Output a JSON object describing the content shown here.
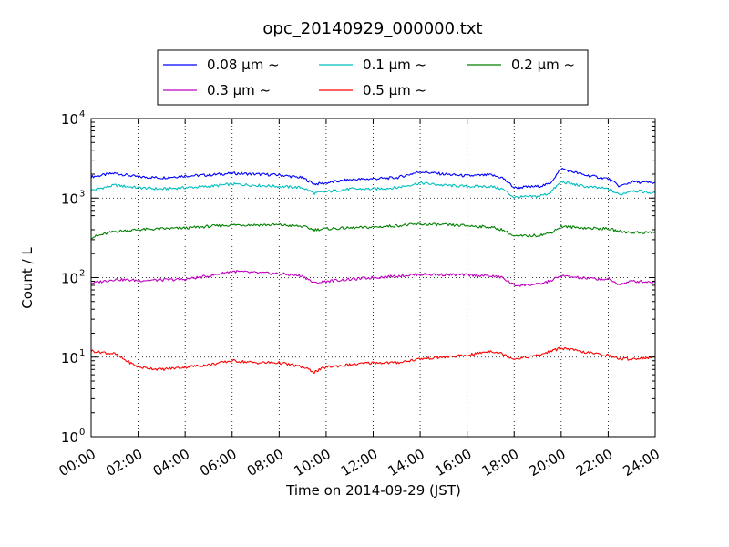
{
  "chart_data": {
    "type": "line",
    "title": "opc_20140929_000000.txt",
    "xlabel": "Time on 2014-09-29 (JST)",
    "ylabel": "Count / L",
    "y_scale": "log",
    "ylim": [
      1,
      10000
    ],
    "y_ticks": [
      {
        "base": "10",
        "exp": "0",
        "value": 1
      },
      {
        "base": "10",
        "exp": "1",
        "value": 10
      },
      {
        "base": "10",
        "exp": "2",
        "value": 100
      },
      {
        "base": "10",
        "exp": "3",
        "value": 1000
      },
      {
        "base": "10",
        "exp": "4",
        "value": 10000
      }
    ],
    "x_range": [
      "00:00",
      "24:00"
    ],
    "x_ticks": [
      "00:00",
      "02:00",
      "04:00",
      "06:00",
      "08:00",
      "10:00",
      "12:00",
      "14:00",
      "16:00",
      "18:00",
      "20:00",
      "22:00",
      "24:00"
    ],
    "grid": true,
    "legend_position": "top-center",
    "series": [
      {
        "name": "0.08 μm ~",
        "color": "#0000ff",
        "x": [
          "00:00",
          "01:00",
          "02:00",
          "03:00",
          "04:00",
          "05:00",
          "06:00",
          "07:00",
          "08:00",
          "09:00",
          "09:30",
          "10:00",
          "11:00",
          "12:00",
          "13:00",
          "14:00",
          "15:00",
          "16:00",
          "17:00",
          "17:30",
          "18:00",
          "19:00",
          "19:30",
          "20:00",
          "21:00",
          "22:00",
          "22:30",
          "23:00",
          "24:00"
        ],
        "y": [
          1850,
          2050,
          1850,
          1800,
          1900,
          1950,
          2050,
          2000,
          1950,
          1800,
          1500,
          1550,
          1700,
          1750,
          1800,
          2150,
          2000,
          1900,
          1950,
          1800,
          1350,
          1400,
          1500,
          2350,
          1950,
          1750,
          1400,
          1600,
          1550
        ]
      },
      {
        "name": "0.1 μm ~",
        "color": "#00bfbf",
        "x": [
          "00:00",
          "01:00",
          "02:00",
          "03:00",
          "04:00",
          "05:00",
          "06:00",
          "07:00",
          "08:00",
          "09:00",
          "09:30",
          "10:00",
          "11:00",
          "12:00",
          "13:00",
          "14:00",
          "15:00",
          "16:00",
          "17:00",
          "17:30",
          "18:00",
          "19:00",
          "19:30",
          "20:00",
          "21:00",
          "22:00",
          "22:30",
          "23:00",
          "24:00"
        ],
        "y": [
          1250,
          1450,
          1350,
          1300,
          1350,
          1400,
          1500,
          1450,
          1400,
          1350,
          1150,
          1200,
          1300,
          1300,
          1350,
          1550,
          1450,
          1400,
          1400,
          1300,
          1020,
          1050,
          1150,
          1600,
          1400,
          1300,
          1100,
          1250,
          1150
        ]
      },
      {
        "name": "0.2 μm ~",
        "color": "#008000",
        "x": [
          "00:00",
          "01:00",
          "02:00",
          "04:00",
          "06:00",
          "08:00",
          "09:00",
          "09:30",
          "10:00",
          "12:00",
          "14:00",
          "16:00",
          "17:00",
          "17:30",
          "18:00",
          "19:00",
          "19:30",
          "20:00",
          "21:00",
          "22:00",
          "22:30",
          "23:00",
          "24:00"
        ],
        "y": [
          320,
          380,
          400,
          420,
          460,
          460,
          440,
          400,
          410,
          430,
          470,
          450,
          430,
          400,
          330,
          340,
          360,
          440,
          420,
          410,
          380,
          370,
          370
        ]
      },
      {
        "name": "0.3 μm ~",
        "color": "#bf00bf",
        "x": [
          "00:00",
          "01:00",
          "02:00",
          "04:00",
          "05:00",
          "06:00",
          "07:00",
          "08:00",
          "09:00",
          "09:30",
          "10:00",
          "12:00",
          "14:00",
          "16:00",
          "17:00",
          "17:30",
          "18:00",
          "19:00",
          "19:30",
          "20:00",
          "21:00",
          "22:00",
          "22:30",
          "23:00",
          "24:00"
        ],
        "y": [
          85,
          95,
          92,
          95,
          105,
          120,
          115,
          112,
          105,
          85,
          90,
          100,
          110,
          108,
          105,
          100,
          80,
          82,
          90,
          105,
          98,
          95,
          82,
          90,
          88
        ]
      },
      {
        "name": "0.5 μm ~",
        "color": "#ff0000",
        "x": [
          "00:00",
          "01:00",
          "01:30",
          "02:00",
          "03:00",
          "04:00",
          "05:00",
          "06:00",
          "07:00",
          "08:00",
          "09:00",
          "09:30",
          "10:00",
          "11:00",
          "12:00",
          "13:00",
          "14:00",
          "15:00",
          "16:00",
          "17:00",
          "17:30",
          "18:00",
          "19:00",
          "20:00",
          "21:00",
          "22:00",
          "22:30",
          "23:00",
          "24:00"
        ],
        "y": [
          12,
          11,
          9,
          7.5,
          7,
          7.5,
          8,
          9,
          8.5,
          8.5,
          7.5,
          6.5,
          7.5,
          8,
          8.5,
          8.5,
          9.5,
          10,
          10.5,
          12,
          11,
          9.5,
          10.5,
          13,
          11.5,
          10.5,
          9.5,
          9.5,
          10
        ]
      }
    ]
  }
}
